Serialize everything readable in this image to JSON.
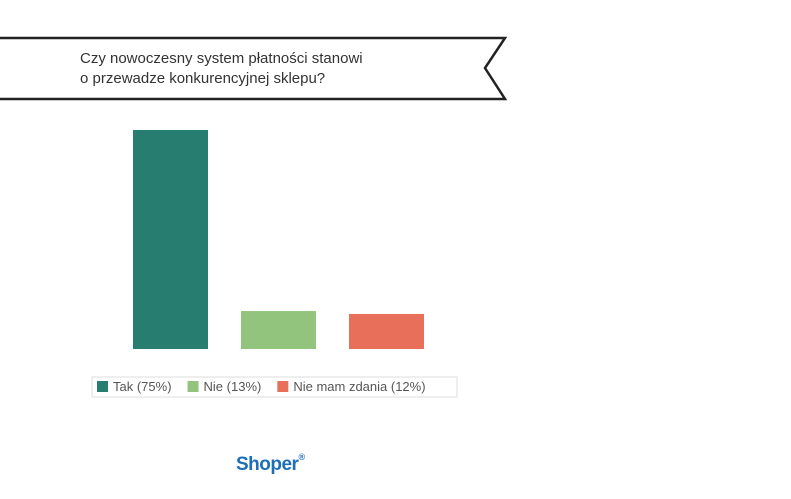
{
  "chart_data": {
    "type": "bar",
    "title": [
      "Czy nowoczesny system płatności stanowi",
      "o przewadze konkurencyjnej sklepu?"
    ],
    "categories": [
      null
    ],
    "series": [
      {
        "name": "Tak (75%)",
        "color": "#267d70",
        "values": [
          75
        ]
      },
      {
        "name": "Nie (13%)",
        "color": "#93c47d",
        "values": [
          13
        ]
      },
      {
        "name": "Nie mam zdania (12%)",
        "color": "#e8705a",
        "values": [
          12
        ]
      }
    ],
    "logo": {
      "name": "Shoper",
      "mark": "®"
    }
  }
}
